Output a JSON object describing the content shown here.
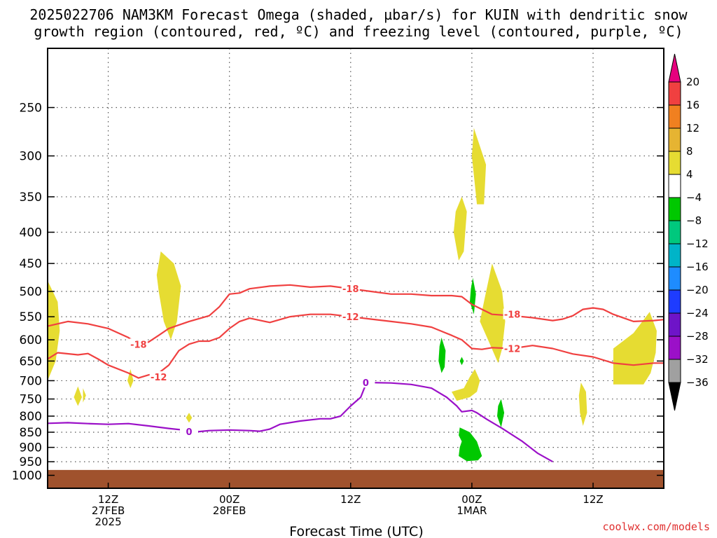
{
  "title": {
    "line1": "2025022706 NAM3KM Forecast Omega (shaded, µbar/s) for KUIN with dendritic snow",
    "line2": "growth region (contoured, red, ºC) and freezing level (contoured, purple, ºC)"
  },
  "credit": "coolwx.com/models",
  "colors": {
    "dgz_contour": "#f04040",
    "freezing_contour": "#9b10c8",
    "ground": "#a0522d",
    "omega_pos_4_8": "#e6dc32",
    "omega_neg_4_8": "#00c800"
  },
  "chart_data": {
    "type": "heatmap",
    "title": "2025022706 NAM3KM Forecast Omega (shaded, µbar/s) for KUIN with dendritic snow growth region (contoured, red, ºC) and freezing level (contoured, purple, ºC)",
    "xlabel": "Forecast Time (UTC)",
    "ylabel": "",
    "x_units": "forecast hour (from 2025022706)",
    "xlim": [
      0,
      61
    ],
    "ylim": [
      1050,
      200
    ],
    "y_scale": "log (pressure, hPa)",
    "grid": true,
    "y_ticks": [
      250,
      300,
      350,
      400,
      450,
      500,
      550,
      600,
      650,
      700,
      750,
      800,
      850,
      900,
      950,
      1000
    ],
    "x_ticks": [
      {
        "hour": 6,
        "labels": [
          "12Z",
          "27FEB",
          "2025"
        ]
      },
      {
        "hour": 18,
        "labels": [
          "00Z",
          "28FEB"
        ]
      },
      {
        "hour": 30,
        "labels": [
          "12Z"
        ]
      },
      {
        "hour": 42,
        "labels": [
          "00Z",
          "1MAR"
        ]
      },
      {
        "hour": 54,
        "labels": [
          "12Z"
        ]
      }
    ],
    "colorbar": {
      "levels": [
        20,
        16,
        12,
        8,
        4,
        -4,
        -8,
        -12,
        -16,
        -20,
        -24,
        -28,
        -32,
        -36
      ],
      "colors": [
        "#e6007e",
        "#f04040",
        "#f08020",
        "#e6b432",
        "#e6dc32",
        "#ffffff",
        "#00c800",
        "#00c87d",
        "#00b4c8",
        "#1e8cff",
        "#1e3cff",
        "#6e14c8",
        "#9b10c8",
        "#a0a0a0",
        "#000000"
      ]
    },
    "contours": [
      {
        "name": "-18",
        "color": "#f04040",
        "points": [
          [
            0,
            570
          ],
          [
            2,
            560
          ],
          [
            4,
            565
          ],
          [
            6,
            575
          ],
          [
            8,
            595
          ],
          [
            9,
            610
          ],
          [
            10,
            605
          ],
          [
            11,
            590
          ],
          [
            12,
            575
          ],
          [
            14,
            560
          ],
          [
            16,
            548
          ],
          [
            17,
            530
          ],
          [
            18,
            505
          ],
          [
            19,
            503
          ],
          [
            20,
            495
          ],
          [
            22,
            490
          ],
          [
            24,
            488
          ],
          [
            26,
            492
          ],
          [
            28,
            490
          ],
          [
            30,
            495
          ],
          [
            32,
            500
          ],
          [
            34,
            505
          ],
          [
            36,
            505
          ],
          [
            38,
            508
          ],
          [
            40,
            508
          ],
          [
            41,
            510
          ],
          [
            42,
            525
          ],
          [
            43,
            535
          ],
          [
            44,
            545
          ],
          [
            46,
            548
          ],
          [
            48,
            552
          ],
          [
            50,
            558
          ],
          [
            51,
            555
          ],
          [
            52,
            548
          ],
          [
            53,
            535
          ],
          [
            54,
            532
          ],
          [
            55,
            535
          ],
          [
            56,
            545
          ],
          [
            58,
            560
          ],
          [
            60,
            558
          ],
          [
            61,
            556
          ]
        ],
        "labels": [
          {
            "x": 9,
            "y": 610
          },
          {
            "x": 30,
            "y": 495
          },
          {
            "x": 46,
            "y": 545
          }
        ]
      },
      {
        "name": "-12",
        "color": "#f04040",
        "points": [
          [
            0,
            645
          ],
          [
            1,
            630
          ],
          [
            3,
            635
          ],
          [
            4,
            632
          ],
          [
            5,
            645
          ],
          [
            6,
            660
          ],
          [
            8,
            680
          ],
          [
            9,
            693
          ],
          [
            10,
            685
          ],
          [
            11,
            680
          ],
          [
            12,
            660
          ],
          [
            13,
            625
          ],
          [
            14,
            610
          ],
          [
            15,
            603
          ],
          [
            16,
            603
          ],
          [
            17,
            595
          ],
          [
            18,
            575
          ],
          [
            19,
            560
          ],
          [
            20,
            553
          ],
          [
            22,
            562
          ],
          [
            24,
            550
          ],
          [
            26,
            545
          ],
          [
            28,
            545
          ],
          [
            30,
            550
          ],
          [
            32,
            555
          ],
          [
            34,
            560
          ],
          [
            36,
            565
          ],
          [
            38,
            572
          ],
          [
            40,
            590
          ],
          [
            41,
            600
          ],
          [
            42,
            620
          ],
          [
            43,
            622
          ],
          [
            44,
            618
          ],
          [
            46,
            620
          ],
          [
            48,
            613
          ],
          [
            50,
            620
          ],
          [
            52,
            633
          ],
          [
            54,
            640
          ],
          [
            56,
            655
          ],
          [
            58,
            660
          ],
          [
            60,
            655
          ],
          [
            61,
            655
          ]
        ],
        "labels": [
          {
            "x": 11,
            "y": 690
          },
          {
            "x": 30,
            "y": 550
          },
          {
            "x": 46,
            "y": 620
          }
        ]
      },
      {
        "name": "0",
        "color": "#9b10c8",
        "points": [
          [
            0,
            822
          ],
          [
            2,
            820
          ],
          [
            4,
            823
          ],
          [
            6,
            825
          ],
          [
            8,
            823
          ],
          [
            10,
            830
          ],
          [
            12,
            838
          ],
          [
            14,
            845
          ],
          [
            15,
            848
          ],
          [
            16,
            845
          ],
          [
            18,
            843
          ],
          [
            20,
            845
          ],
          [
            21,
            847
          ],
          [
            22,
            840
          ],
          [
            23,
            825
          ],
          [
            25,
            815
          ],
          [
            27,
            808
          ],
          [
            28,
            808
          ],
          [
            29,
            800
          ],
          [
            30,
            770
          ],
          [
            31,
            745
          ],
          [
            31.5,
            710
          ],
          [
            32,
            705
          ],
          [
            34,
            706
          ],
          [
            36,
            710
          ],
          [
            38,
            720
          ],
          [
            39.5,
            745
          ],
          [
            40.5,
            770
          ],
          [
            41,
            787
          ],
          [
            42,
            783
          ],
          [
            42.5,
            790
          ],
          [
            43.5,
            810
          ],
          [
            45,
            838
          ],
          [
            47,
            880
          ],
          [
            48.5,
            920
          ],
          [
            50,
            950
          ]
        ],
        "labels": [
          {
            "x": 14,
            "y": 848
          },
          {
            "x": 31.5,
            "y": 705
          }
        ]
      }
    ],
    "shaded_regions": [
      {
        "value_range": "4 to 8",
        "color": "#e6dc32",
        "points": [
          [
            0,
            480
          ],
          [
            1,
            520
          ],
          [
            1.2,
            580
          ],
          [
            0.8,
            650
          ],
          [
            0,
            700
          ]
        ]
      },
      {
        "value_range": "4 to 8",
        "color": "#e6dc32",
        "points": [
          [
            3,
            715
          ],
          [
            3.4,
            745
          ],
          [
            3,
            770
          ],
          [
            2.6,
            745
          ]
        ]
      },
      {
        "value_range": "4 to 8",
        "color": "#e6dc32",
        "points": [
          [
            11.2,
            430
          ],
          [
            12.5,
            450
          ],
          [
            13.2,
            490
          ],
          [
            12.8,
            560
          ],
          [
            12.2,
            600
          ],
          [
            11.5,
            560
          ],
          [
            11,
            500
          ],
          [
            10.8,
            470
          ]
        ]
      },
      {
        "value_range": "4 to 8",
        "color": "#e6dc32",
        "points": [
          [
            8.2,
            670
          ],
          [
            8.5,
            700
          ],
          [
            8.2,
            720
          ],
          [
            7.9,
            700
          ]
        ]
      },
      {
        "value_range": "4 to 8",
        "color": "#e6dc32",
        "points": [
          [
            14,
            790
          ],
          [
            14.3,
            805
          ],
          [
            14,
            820
          ],
          [
            13.7,
            805
          ]
        ]
      },
      {
        "value_range": "4 to 8",
        "color": "#e6dc32",
        "points": [
          [
            42.2,
            270
          ],
          [
            43.4,
            310
          ],
          [
            43.2,
            360
          ],
          [
            42.5,
            360
          ],
          [
            42,
            300
          ]
        ]
      },
      {
        "value_range": "4 to 8",
        "color": "#e6dc32",
        "points": [
          [
            41,
            350
          ],
          [
            41.5,
            370
          ],
          [
            41.2,
            430
          ],
          [
            40.7,
            445
          ],
          [
            40.2,
            400
          ],
          [
            40.4,
            370
          ]
        ]
      },
      {
        "value_range": "4 to 8",
        "color": "#e6dc32",
        "points": [
          [
            44,
            450
          ],
          [
            45,
            500
          ],
          [
            45.3,
            560
          ],
          [
            45,
            620
          ],
          [
            44.6,
            655
          ],
          [
            43.6,
            600
          ],
          [
            42.8,
            560
          ],
          [
            43.3,
            510
          ]
        ]
      },
      {
        "value_range": "4 to 8",
        "color": "#e6dc32",
        "points": [
          [
            42.3,
            670
          ],
          [
            42.8,
            700
          ],
          [
            42.5,
            730
          ],
          [
            41.8,
            745
          ],
          [
            40.5,
            755
          ],
          [
            40,
            730
          ],
          [
            41.2,
            720
          ],
          [
            41.8,
            690
          ]
        ]
      },
      {
        "value_range": "4 to 8",
        "color": "#e6dc32",
        "points": [
          [
            52.8,
            705
          ],
          [
            53.3,
            730
          ],
          [
            53.4,
            790
          ],
          [
            53,
            830
          ],
          [
            52.7,
            790
          ],
          [
            52.6,
            740
          ]
        ]
      },
      {
        "value_range": "4 to 8",
        "color": "#e6dc32",
        "points": [
          [
            59.6,
            540
          ],
          [
            60.3,
            580
          ],
          [
            60.2,
            630
          ],
          [
            59.7,
            680
          ],
          [
            59,
            710
          ],
          [
            56,
            710
          ],
          [
            56,
            620
          ],
          [
            58,
            585
          ]
        ]
      },
      {
        "value_range": "4 to 8",
        "color": "#e6dc32",
        "points": [
          [
            3.5,
            720
          ],
          [
            3.8,
            740
          ],
          [
            3.5,
            760
          ]
        ]
      },
      {
        "value_range": "-4 to -8",
        "color": "#00c800",
        "points": [
          [
            39,
            595
          ],
          [
            39.4,
            625
          ],
          [
            39.3,
            665
          ],
          [
            39,
            680
          ],
          [
            38.7,
            650
          ],
          [
            38.8,
            615
          ]
        ]
      },
      {
        "value_range": "-4 to -8",
        "color": "#00c800",
        "points": [
          [
            42.1,
            475
          ],
          [
            42.4,
            505
          ],
          [
            42.2,
            545
          ],
          [
            41.8,
            520
          ],
          [
            41.9,
            495
          ]
        ]
      },
      {
        "value_range": "-4 to -8",
        "color": "#00c800",
        "points": [
          [
            41,
            640
          ],
          [
            41.2,
            650
          ],
          [
            41,
            660
          ],
          [
            40.8,
            650
          ]
        ]
      },
      {
        "value_range": "-4 to -8",
        "color": "#00c800",
        "points": [
          [
            40.8,
            835
          ],
          [
            41.8,
            850
          ],
          [
            42.5,
            880
          ],
          [
            43,
            930
          ],
          [
            42.6,
            945
          ],
          [
            41.5,
            948
          ],
          [
            40.7,
            930
          ],
          [
            40.8,
            900
          ],
          [
            41,
            880
          ],
          [
            40.7,
            860
          ]
        ]
      },
      {
        "value_range": "-4 to -8",
        "color": "#00c800",
        "points": [
          [
            44.9,
            750
          ],
          [
            45.2,
            790
          ],
          [
            44.9,
            835
          ],
          [
            44.5,
            800
          ],
          [
            44.6,
            770
          ]
        ]
      }
    ],
    "ground_pressure": 980
  },
  "axes": {
    "xlabel": "Forecast Time (UTC)"
  }
}
